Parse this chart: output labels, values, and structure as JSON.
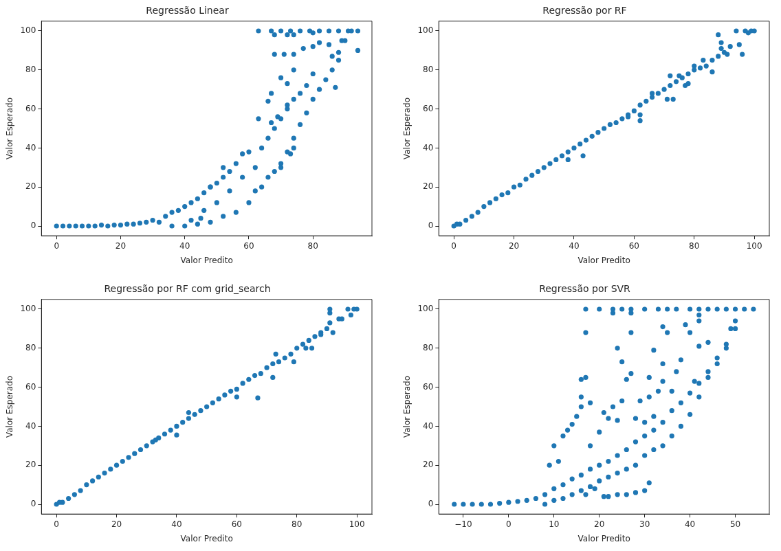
{
  "chart_data": [
    {
      "type": "scatter",
      "title": "Regressão Linear",
      "xlabel": "Valor Predito",
      "ylabel": "Valor Esperado",
      "marker": "circle",
      "xlim": [
        -4.7,
        98.4
      ],
      "ylim": [
        -5,
        105
      ],
      "xticks": [
        0,
        20,
        40,
        60,
        80
      ],
      "yticks": [
        0,
        20,
        40,
        60,
        80,
        100
      ],
      "series": [
        {
          "color": "#1f77b4",
          "x": [
            0,
            2,
            4,
            6,
            8,
            10,
            12,
            14,
            16,
            18,
            20,
            22,
            24,
            26,
            28,
            30,
            32,
            34,
            36,
            38,
            40,
            42,
            44,
            46,
            48,
            50,
            52,
            54,
            56,
            58,
            60,
            36,
            40,
            44,
            48,
            52,
            56,
            60,
            62,
            64,
            66,
            68,
            70,
            72,
            74,
            76,
            78,
            80,
            82,
            84,
            86,
            88,
            90,
            92,
            64,
            66,
            68,
            70,
            72,
            74,
            76,
            78,
            80,
            52,
            48,
            46,
            50,
            54,
            58,
            62,
            45,
            42,
            63,
            63,
            66,
            67,
            68,
            70,
            71,
            72,
            74,
            74,
            77,
            80,
            82,
            85,
            87,
            86,
            88,
            89,
            94,
            72,
            74,
            70,
            73,
            67,
            69,
            67,
            70,
            73,
            76,
            79,
            82,
            85,
            88,
            91,
            94,
            68,
            72,
            74,
            80
          ],
          "values": [
            0,
            0,
            0,
            0,
            0,
            0,
            0,
            0.5,
            0,
            0.5,
            0.5,
            1,
            1,
            1.5,
            2,
            3,
            2,
            5,
            7,
            8,
            10,
            12,
            14,
            17,
            20,
            22,
            25,
            28,
            32,
            37,
            38,
            0,
            0,
            1,
            2,
            5,
            7,
            12,
            18,
            20,
            25,
            28,
            32,
            38,
            45,
            52,
            58,
            65,
            70,
            75,
            80,
            85,
            95,
            100,
            40,
            45,
            50,
            55,
            60,
            65,
            68,
            72,
            78,
            30,
            20,
            8,
            12,
            18,
            25,
            30,
            4,
            3,
            55,
            100,
            64,
            68,
            88,
            76,
            88,
            73,
            88,
            80,
            91,
            92,
            94,
            93,
            71,
            87,
            89,
            95,
            90,
            62,
            40,
            30,
            37,
            53,
            56,
            100,
            100,
            100,
            100,
            100,
            100,
            100,
            100,
            100,
            100,
            98,
            98,
            98,
            99
          ]
        }
      ]
    },
    {
      "type": "scatter",
      "title": "Regressão por RF",
      "xlabel": "Valor Predito",
      "ylabel": "Valor Esperado",
      "marker": "circle",
      "xlim": [
        -5,
        105
      ],
      "ylim": [
        -5,
        105
      ],
      "xticks": [
        0,
        20,
        40,
        60,
        80,
        100
      ],
      "yticks": [
        0,
        20,
        40,
        60,
        80,
        100
      ],
      "series": [
        {
          "color": "#1f77b4",
          "x": [
            0,
            1,
            2,
            4,
            6,
            8,
            10,
            12,
            14,
            16,
            18,
            20,
            22,
            24,
            26,
            28,
            30,
            32,
            34,
            36,
            38,
            40,
            42,
            44,
            46,
            48,
            50,
            52,
            54,
            56,
            58,
            60,
            62,
            64,
            66,
            68,
            70,
            72,
            74,
            76,
            78,
            80,
            82,
            84,
            86,
            88,
            90,
            92,
            38,
            43,
            58,
            62,
            62,
            71,
            73,
            77,
            78,
            86,
            88,
            96,
            89,
            89,
            91,
            95,
            94,
            97,
            100,
            99,
            98,
            80,
            83,
            72,
            75,
            66
          ],
          "values": [
            0,
            1,
            1,
            3,
            5,
            7,
            10,
            12,
            14,
            16,
            17,
            20,
            21,
            24,
            26,
            28,
            30,
            32,
            34,
            36,
            38,
            40,
            42,
            44,
            46,
            48,
            50,
            52,
            53,
            55,
            57,
            59,
            62,
            64,
            66,
            68,
            70,
            72,
            74,
            76,
            78,
            80,
            81,
            82,
            85,
            87,
            89,
            92,
            34,
            36,
            56,
            54,
            57,
            65,
            65,
            72,
            73,
            79,
            98,
            88,
            94,
            91,
            88,
            93,
            100,
            100,
            100,
            100,
            99,
            82,
            85,
            77,
            77,
            68
          ]
        }
      ]
    },
    {
      "type": "scatter",
      "title": "Regressão por RF com grid_search",
      "xlabel": "Valor Predito",
      "ylabel": "Valor Esperado",
      "marker": "circle",
      "xlim": [
        -5,
        105
      ],
      "ylim": [
        -5,
        105
      ],
      "xticks": [
        0,
        20,
        40,
        60,
        80,
        100
      ],
      "yticks": [
        0,
        20,
        40,
        60,
        80,
        100
      ],
      "series": [
        {
          "color": "#1f77b4",
          "x": [
            0,
            1,
            2,
            4,
            6,
            8,
            10,
            12,
            14,
            16,
            18,
            20,
            22,
            24,
            26,
            28,
            30,
            32,
            34,
            36,
            38,
            40,
            42,
            44,
            46,
            48,
            50,
            52,
            54,
            56,
            58,
            60,
            62,
            64,
            66,
            68,
            70,
            72,
            74,
            76,
            78,
            80,
            82,
            84,
            86,
            88,
            90,
            94,
            67,
            72,
            79,
            60,
            40,
            44,
            33,
            73,
            85,
            83,
            88,
            91,
            91,
            91,
            92,
            95,
            97,
            98,
            100,
            99
          ],
          "values": [
            0,
            1,
            1,
            3,
            5,
            7,
            10,
            12,
            14,
            16,
            18,
            20,
            22,
            24,
            26,
            28,
            30,
            32,
            34,
            36,
            38,
            40,
            42,
            44,
            46,
            48,
            50,
            52,
            54,
            56,
            58,
            59,
            62,
            64,
            66,
            67,
            70,
            72,
            73,
            75,
            77,
            80,
            82,
            84,
            86,
            88,
            90,
            95,
            54.5,
            65,
            73,
            55,
            35.5,
            47,
            33,
            77,
            80,
            80,
            87,
            93,
            98,
            100,
            88,
            95,
            100,
            97,
            100,
            100
          ]
        }
      ]
    },
    {
      "type": "scatter",
      "title": "Regressão por SVR",
      "xlabel": "Valor Predito",
      "ylabel": "Valor Esperado",
      "marker": "circle",
      "xlim": [
        -15.4,
        57.5
      ],
      "ylim": [
        -5,
        105
      ],
      "xticks": [
        -10,
        0,
        10,
        20,
        30,
        40,
        50
      ],
      "yticks": [
        0,
        20,
        40,
        60,
        80,
        100
      ],
      "series": [
        {
          "color": "#1f77b4",
          "x": [
            -12,
            -10,
            -8,
            -6,
            -4,
            -2,
            0,
            2,
            4,
            6,
            8,
            10,
            12,
            14,
            16,
            18,
            20,
            22,
            24,
            26,
            28,
            30,
            32,
            34,
            36,
            38,
            40,
            42,
            44,
            46,
            48,
            50,
            8,
            10,
            12,
            14,
            16,
            18,
            20,
            22,
            24,
            26,
            28,
            30,
            32,
            34,
            36,
            38,
            40,
            42,
            44,
            46,
            48,
            49,
            50,
            9,
            10,
            11,
            12,
            13,
            14,
            15,
            16,
            16,
            17,
            17,
            16,
            18,
            18,
            20,
            21,
            22,
            23,
            24,
            25,
            26,
            25,
            24,
            27,
            27,
            28,
            29,
            30,
            31,
            31,
            32,
            32,
            33,
            34,
            34,
            34,
            35,
            36,
            37,
            38,
            39,
            40,
            41,
            42,
            42,
            44,
            21,
            22,
            24,
            26,
            28,
            30,
            31,
            17,
            19,
            17,
            20,
            23,
            25,
            27,
            30,
            33,
            35,
            37,
            40,
            42,
            44,
            46,
            48,
            50,
            52,
            54,
            23,
            27,
            42
          ],
          "values": [
            0,
            0,
            0,
            0,
            0,
            0.5,
            1,
            1.5,
            2,
            3,
            5,
            8,
            10,
            13,
            15,
            18,
            20,
            22,
            25,
            28,
            32,
            35,
            38,
            42,
            48,
            52,
            57,
            62,
            68,
            75,
            82,
            90,
            0,
            2,
            3,
            5,
            7,
            9,
            12,
            14,
            16,
            18,
            20,
            25,
            28,
            30,
            35,
            40,
            46,
            55,
            65,
            72,
            80,
            90,
            94,
            20,
            30,
            22,
            35,
            38,
            41,
            45,
            55,
            64,
            65,
            88,
            50,
            52,
            30,
            37,
            47,
            44,
            50,
            43,
            53,
            64,
            73,
            80,
            88,
            67,
            44,
            53,
            42,
            55,
            65,
            79,
            45,
            58,
            63,
            72,
            91,
            88,
            58,
            68,
            74,
            92,
            88,
            63,
            81,
            94,
            83,
            4,
            4,
            5,
            5,
            6,
            7,
            11,
            5,
            8,
            100,
            100,
            100,
            100,
            100,
            100,
            100,
            100,
            100,
            100,
            100,
            100,
            100,
            100,
            100,
            100,
            100,
            98,
            98,
            97
          ]
        }
      ]
    }
  ]
}
